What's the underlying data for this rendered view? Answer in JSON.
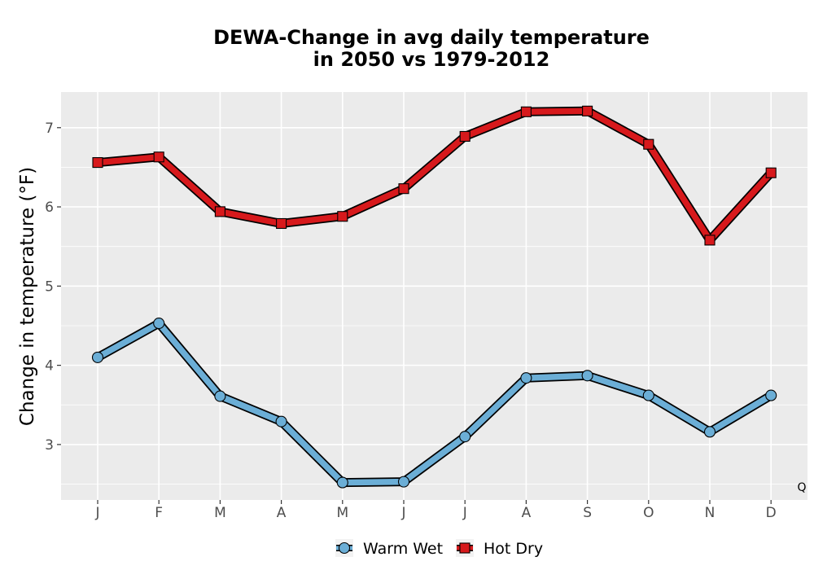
{
  "chart_data": {
    "type": "line",
    "title_line1": "DEWA-Change in avg daily temperature",
    "title_line2": "in 2050 vs 1979-2012",
    "xlabel": "",
    "ylabel": "Change in temperature (°F)",
    "categories": [
      "J",
      "F",
      "M",
      "A",
      "M",
      "J",
      "J",
      "A",
      "S",
      "O",
      "N",
      "D"
    ],
    "ylim": [
      2.3,
      7.45
    ],
    "yticks": [
      3,
      4,
      5,
      6,
      7
    ],
    "grid": true,
    "legend_position": "bottom",
    "caption": "Q",
    "series": [
      {
        "name": "Warm Wet",
        "marker": "circle",
        "color": "#6BAED6",
        "values": [
          4.1,
          4.53,
          3.61,
          3.29,
          2.52,
          2.53,
          3.1,
          3.84,
          3.87,
          3.62,
          3.16,
          3.62
        ]
      },
      {
        "name": "Hot Dry",
        "marker": "square",
        "color": "#D7191C",
        "values": [
          6.56,
          6.63,
          5.94,
          5.79,
          5.88,
          6.23,
          6.89,
          7.2,
          7.21,
          6.79,
          5.58,
          6.43
        ]
      }
    ],
    "colors": {
      "panel_background": "#EBEBEB",
      "grid": "#FFFFFF",
      "outline": "#000000"
    }
  }
}
